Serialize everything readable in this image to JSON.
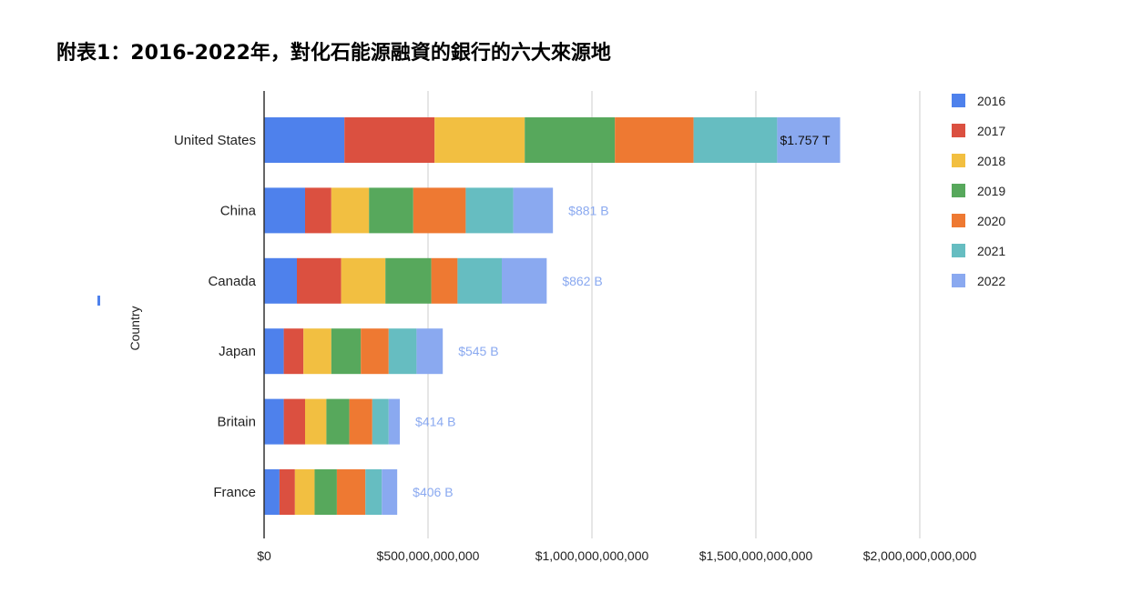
{
  "title": "附表1：2016-2022年，對化石能源融資的銀行的六大來源地",
  "chart_data": {
    "type": "bar",
    "orientation": "horizontal",
    "stacked": true,
    "title": "附表1：2016-2022年，對化石能源融資的銀行的六大來源地",
    "ylabel": "Country",
    "xlim": [
      0,
      2000000000000
    ],
    "x_ticks": [
      "$0",
      "$500,000,000,000",
      "$1,000,000,000,000",
      "$1,500,000,000,000",
      "$2,000,000,000,000"
    ],
    "grid": true,
    "legend_position": "right",
    "categories": [
      "United States",
      "China",
      "Canada",
      "Japan",
      "Britain",
      "France"
    ],
    "totals_labels": [
      "$1.757 T",
      "$881 B",
      "$862 B",
      "$545 B",
      "$414 B",
      "$406 B"
    ],
    "series": [
      {
        "name": "2016",
        "color": "#4e81ec",
        "values": [
          245000000000,
          125000000000,
          100000000000,
          60000000000,
          60000000000,
          47000000000
        ]
      },
      {
        "name": "2017",
        "color": "#db5040",
        "values": [
          275000000000,
          80000000000,
          135000000000,
          60000000000,
          65000000000,
          47000000000
        ]
      },
      {
        "name": "2018",
        "color": "#f2bf41",
        "values": [
          275000000000,
          115000000000,
          135000000000,
          85000000000,
          65000000000,
          60000000000
        ]
      },
      {
        "name": "2019",
        "color": "#57a85c",
        "values": [
          275000000000,
          135000000000,
          140000000000,
          90000000000,
          70000000000,
          68000000000
        ]
      },
      {
        "name": "2020",
        "color": "#ee7932",
        "values": [
          240000000000,
          160000000000,
          80000000000,
          85000000000,
          70000000000,
          87000000000
        ]
      },
      {
        "name": "2021",
        "color": "#66bdc1",
        "values": [
          255000000000,
          145000000000,
          135000000000,
          85000000000,
          50000000000,
          50000000000
        ]
      },
      {
        "name": "2022",
        "color": "#8aa9f0",
        "values": [
          192000000000,
          121000000000,
          137000000000,
          80000000000,
          34000000000,
          47000000000
        ]
      }
    ]
  }
}
